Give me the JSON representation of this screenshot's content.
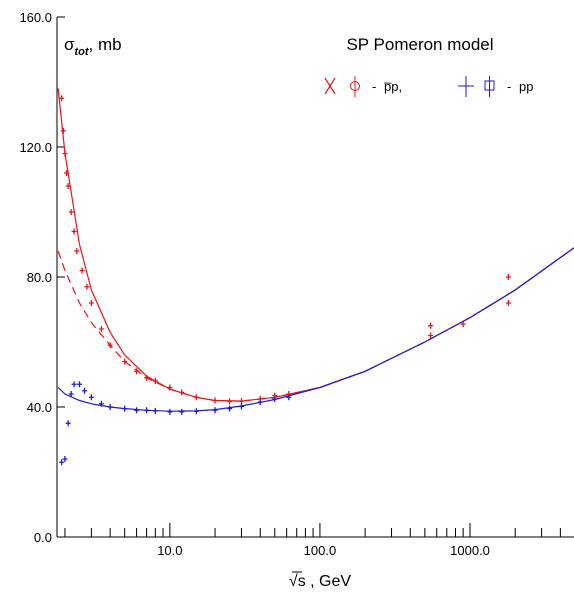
{
  "chart_data": {
    "type": "scatter",
    "title": "SP Pomeron model",
    "y_label": {
      "symbol": "σ",
      "subscript": "tot",
      "unit": ", mb"
    },
    "x_label": "√s  ,  GeV",
    "log_x": true,
    "xlim": [
      1.77,
      4930
    ],
    "ylim": [
      0,
      160
    ],
    "xticks": [
      {
        "value": 10,
        "label": "10.0"
      },
      {
        "value": 100,
        "label": "100.0"
      },
      {
        "value": 1000,
        "label": "1000.0"
      }
    ],
    "xminorticks": [
      2,
      3,
      4,
      5,
      6,
      7,
      8,
      9,
      20,
      30,
      40,
      50,
      60,
      70,
      80,
      90,
      200,
      300,
      400,
      500,
      600,
      700,
      800,
      900,
      2000,
      3000,
      4000
    ],
    "yticks": [
      {
        "value": 0,
        "label": "0.0"
      },
      {
        "value": 40,
        "label": "40.0"
      },
      {
        "value": 80,
        "label": "80.0"
      },
      {
        "value": 120,
        "label": "120.0"
      },
      {
        "value": 160,
        "label": "160.0"
      }
    ],
    "series": [
      {
        "name": "p̅p,",
        "color": "#e8141c",
        "mode": "markers",
        "x": [
          1.9,
          1.95,
          2.0,
          2.05,
          2.1,
          2.2,
          2.3,
          2.4,
          2.6,
          2.8,
          3.0,
          3.5,
          4,
          5,
          6,
          7,
          8,
          10,
          12,
          15,
          20,
          25,
          30,
          40,
          50,
          62,
          546,
          546,
          900,
          1800,
          1800
        ],
        "values": [
          135,
          125,
          118,
          112,
          108,
          100,
          94,
          88,
          82,
          77,
          72,
          64,
          59,
          54,
          51,
          49,
          48,
          46,
          44.5,
          43,
          42,
          41.7,
          41.8,
          42.5,
          43.5,
          44,
          62,
          65,
          65.5,
          72,
          80
        ]
      },
      {
        "name": "pp",
        "color": "#1a1ad8",
        "mode": "markers",
        "x": [
          1.9,
          2.0,
          2.1,
          2.2,
          2.3,
          2.5,
          2.7,
          3,
          3.5,
          4,
          5,
          6,
          7,
          8,
          10,
          12,
          15,
          20,
          25,
          30,
          40,
          50,
          62
        ],
        "values": [
          23,
          24,
          35,
          44,
          47,
          47,
          45,
          43,
          41,
          40,
          39.5,
          39,
          39,
          38.8,
          38.5,
          38.5,
          38.7,
          39,
          39.5,
          40.2,
          41.5,
          42.5,
          43
        ]
      },
      {
        "color": "#e8141c",
        "mode": "line",
        "dash": false,
        "x": [
          1.8,
          2,
          2.5,
          3,
          4,
          5,
          7,
          10,
          15,
          20,
          30,
          50,
          100,
          200,
          500,
          1000,
          2000,
          4930
        ],
        "values": [
          138,
          118,
          90,
          76,
          63,
          56,
          49.5,
          45.5,
          43,
          42,
          41.8,
          43,
          46,
          51,
          60,
          67.5,
          76,
          89
        ]
      },
      {
        "color": "#e8141c",
        "mode": "line",
        "dash": true,
        "x": [
          1.8,
          2,
          2.5,
          3,
          4,
          5,
          7,
          10,
          15,
          20,
          30,
          50,
          100,
          200,
          500,
          1000,
          2000,
          4930
        ],
        "values": [
          88,
          82,
          72,
          66,
          59,
          54,
          49,
          45.5,
          43,
          42,
          41.8,
          43,
          46,
          51,
          60,
          67.5,
          76,
          89
        ]
      },
      {
        "color": "#1a1ad8",
        "mode": "line",
        "dash": false,
        "x": [
          1.8,
          2,
          2.5,
          3,
          4,
          5,
          7,
          10,
          15,
          20,
          30,
          50,
          100,
          200,
          500,
          1000,
          2000,
          4930
        ],
        "values": [
          46,
          44,
          42,
          41,
          40,
          39.5,
          39,
          38.7,
          38.8,
          39.2,
          40.3,
          42.3,
          46,
          51,
          60,
          67.5,
          76,
          89
        ]
      }
    ]
  }
}
